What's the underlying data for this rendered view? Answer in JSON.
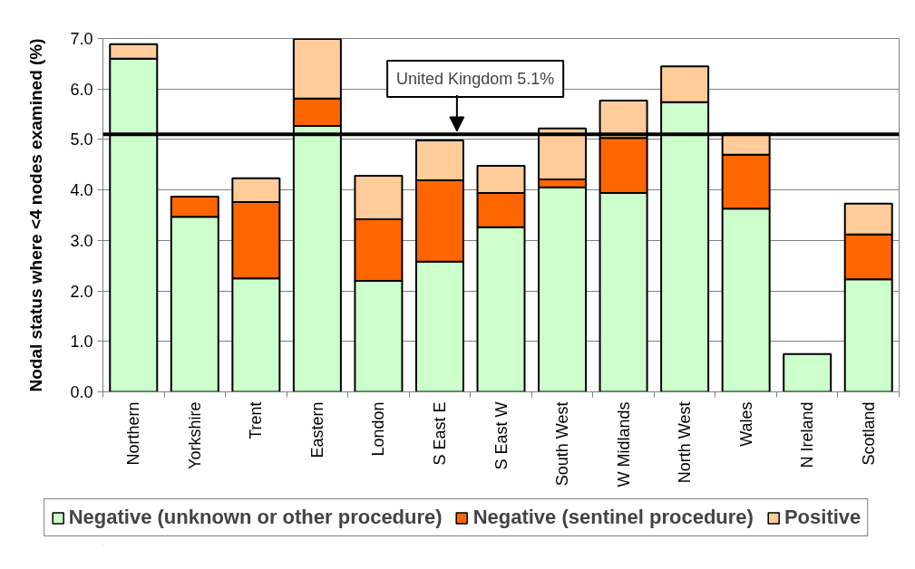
{
  "chart_data": {
    "type": "bar",
    "stacked": true,
    "ylabel": "Nodal status where <4 nodes examined (%)",
    "categories": [
      "Northern",
      "Yorkshire",
      "Trent",
      "Eastern",
      "London",
      "S East E",
      "S East W",
      "South West",
      "W Midlands",
      "North West",
      "Wales",
      "N Ireland",
      "Scotland"
    ],
    "series": [
      {
        "name": "Negative (unknown or other procedure)",
        "color": "#ccffcc",
        "values": [
          6.6,
          3.47,
          2.25,
          5.27,
          2.2,
          2.58,
          3.26,
          4.05,
          3.94,
          5.74,
          3.63,
          0.75,
          2.23
        ]
      },
      {
        "name": "Negative (sentinel procedure)",
        "color": "#ff6600",
        "values": [
          null,
          0.4,
          1.51,
          0.54,
          1.22,
          1.61,
          0.68,
          0.16,
          1.09,
          null,
          1.07,
          null,
          0.89
        ]
      },
      {
        "name": "Positive",
        "color": "#ffcc99",
        "values": [
          0.29,
          null,
          0.47,
          1.18,
          0.86,
          0.79,
          0.54,
          1.01,
          0.74,
          0.71,
          0.42,
          null,
          0.61
        ]
      }
    ],
    "ylim": [
      0,
      7
    ],
    "yticks": [
      {
        "value": 0,
        "label": "0.0"
      },
      {
        "value": 1,
        "label": "1.0"
      },
      {
        "value": 2,
        "label": "2.0"
      },
      {
        "value": 3,
        "label": "3.0"
      },
      {
        "value": 4,
        "label": "4.0"
      },
      {
        "value": 5,
        "label": "5.0"
      },
      {
        "value": 6,
        "label": "6.0"
      },
      {
        "value": 7,
        "label": "7.0"
      }
    ],
    "grid": "y",
    "legend": "bottom",
    "ref_lines": [
      {
        "axis": "y",
        "value": 5.1,
        "label": "United Kingdom 5.1%",
        "color": "#000000"
      }
    ]
  }
}
